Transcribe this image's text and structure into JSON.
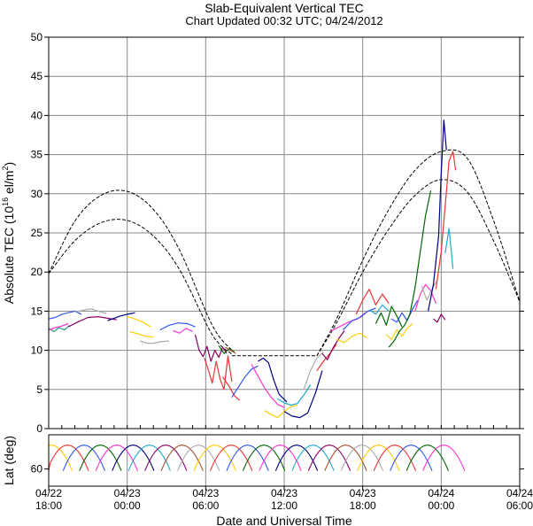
{
  "chart_data": [
    {
      "type": "line",
      "title": "Slab-Equivalent Vertical TEC",
      "subtitle": "Chart Updated 00:32 UTC; 04/24/2012",
      "xlabel": "Date and Universal Time",
      "ylabel": "Absolute TEC (10",
      "ylabel_sup": "16",
      "ylabel_mid": " el/m",
      "ylabel_sup2": "2",
      "ylabel_end": ")",
      "xlim": [
        0,
        36
      ],
      "ylim": [
        0,
        50
      ],
      "yticks": [
        0,
        5,
        10,
        15,
        20,
        25,
        30,
        35,
        40,
        45,
        50
      ],
      "xticks": [
        {
          "x": 0,
          "date": "04/22",
          "time": "18:00"
        },
        {
          "x": 6,
          "date": "04/23",
          "time": "00:00"
        },
        {
          "x": 12,
          "date": "04/23",
          "time": "06:00"
        },
        {
          "x": 18,
          "date": "04/23",
          "time": "12:00"
        },
        {
          "x": 24,
          "date": "04/23",
          "time": "18:00"
        },
        {
          "x": 30,
          "date": "04/24",
          "time": "00:00"
        },
        {
          "x": 36,
          "date": "04/24",
          "time": "06:00"
        }
      ],
      "grid": true,
      "envelope": [
        {
          "x": [
            0,
            2,
            4,
            6,
            8,
            10,
            12.5,
            14
          ],
          "y": [
            19.8,
            26.5,
            29.8,
            30.3,
            28.0,
            22.8,
            13.2,
            10.0
          ]
        },
        {
          "x": [
            0,
            2,
            4,
            6,
            8,
            10,
            12.5,
            14
          ],
          "y": [
            19.8,
            24.0,
            26.3,
            26.6,
            24.6,
            20.3,
            12.0,
            9.5
          ]
        },
        {
          "x": [
            14,
            20.5
          ],
          "y": [
            9.3,
            9.3
          ]
        },
        {
          "x": [
            20.5,
            22,
            24,
            26,
            28,
            30,
            32,
            34,
            36
          ],
          "y": [
            9.3,
            14.0,
            21.5,
            28.0,
            33.0,
            35.4,
            34.5,
            26.6,
            16.2
          ]
        },
        {
          "x": [
            20.5,
            22,
            24,
            26,
            28,
            30,
            32,
            34,
            36
          ],
          "y": [
            9.3,
            13.5,
            20.0,
            25.5,
            29.8,
            31.8,
            30.2,
            24.0,
            16.2
          ]
        }
      ],
      "series": [
        {
          "color": "#3355ee",
          "x": [
            0,
            0.5,
            1.0,
            1.5,
            2.0,
            2.5
          ],
          "y": [
            14.0,
            14.2,
            14.6,
            14.8,
            15.0,
            14.6
          ]
        },
        {
          "color": "#229988",
          "x": [
            0,
            0.4,
            0.8,
            1.2,
            1.6
          ],
          "y": [
            12.8,
            12.4,
            12.9,
            12.6,
            13.2
          ]
        },
        {
          "color": "#ff33cc",
          "x": [
            0,
            0.5,
            1.0,
            1.5
          ],
          "y": [
            12.6,
            12.9,
            13.1,
            13.4
          ]
        },
        {
          "color": "#880066",
          "x": [
            1.5,
            2.2,
            3.0,
            3.8,
            4.5,
            5.2
          ],
          "y": [
            13.0,
            13.6,
            14.2,
            14.3,
            14.1,
            13.9
          ]
        },
        {
          "color": "#aaaaaa",
          "x": [
            2.0,
            2.6,
            3.2,
            3.8,
            4.4
          ],
          "y": [
            14.9,
            15.1,
            15.3,
            15.0,
            14.7
          ]
        },
        {
          "color": "#000080",
          "x": [
            4.5,
            5.0,
            5.5,
            6.0,
            6.6
          ],
          "y": [
            13.8,
            14.1,
            14.4,
            14.6,
            14.8
          ]
        },
        {
          "color": "#ffcc00",
          "x": [
            6.0,
            6.6,
            7.2,
            7.8
          ],
          "y": [
            14.3,
            14.0,
            13.6,
            13.0
          ]
        },
        {
          "color": "#aaaaaa",
          "x": [
            7.0,
            7.5,
            8.0,
            8.6,
            9.2
          ],
          "y": [
            11.2,
            10.9,
            10.9,
            11.1,
            11.2
          ]
        },
        {
          "color": "#ffcc00",
          "x": [
            6.2,
            6.8,
            7.4,
            8.0
          ],
          "y": [
            12.4,
            12.1,
            11.8,
            11.7
          ]
        },
        {
          "color": "#3355ee",
          "x": [
            8.5,
            9.2,
            9.9,
            10.6,
            11.2
          ],
          "y": [
            12.6,
            13.2,
            13.5,
            13.4,
            13.0
          ]
        },
        {
          "color": "#ff33cc",
          "x": [
            9.5,
            10.0,
            10.5,
            11.0
          ],
          "y": [
            12.5,
            12.2,
            12.8,
            12.4
          ]
        },
        {
          "color": "#880066",
          "x": [
            11.2,
            11.5,
            11.8,
            12.1,
            12.4,
            12.7,
            13.0,
            13.3,
            13.6
          ],
          "y": [
            12.0,
            10.0,
            9.2,
            10.5,
            8.6,
            10.0,
            9.1,
            10.4,
            9.6
          ]
        },
        {
          "color": "#ee3333",
          "x": [
            11.9,
            12.2,
            12.5,
            12.8,
            13.1,
            13.4,
            13.7,
            14.0
          ],
          "y": [
            9.0,
            7.5,
            5.8,
            8.6,
            6.3,
            5.0,
            9.3,
            6.0
          ]
        },
        {
          "color": "#006600",
          "x": [
            13.0,
            13.4,
            13.8,
            14.2
          ],
          "y": [
            10.6,
            9.6,
            10.2,
            9.8
          ]
        },
        {
          "color": "#ee3333",
          "x": [
            13.3,
            13.8,
            14.2,
            14.6
          ],
          "y": [
            6.6,
            5.4,
            4.2,
            3.6
          ]
        },
        {
          "color": "#a0522d",
          "x": [
            13.5,
            13.9,
            14.3
          ],
          "y": [
            10.4,
            10.0,
            9.6
          ]
        },
        {
          "color": "#3355ee",
          "x": [
            14.0,
            14.5,
            15.0,
            15.5,
            16.0
          ],
          "y": [
            4.0,
            5.3,
            6.6,
            7.6,
            8.0
          ]
        },
        {
          "color": "#ff33cc",
          "x": [
            15.5,
            16.0,
            16.5,
            17.0,
            17.5,
            18.0
          ],
          "y": [
            8.2,
            6.7,
            5.2,
            4.0,
            3.1,
            2.7
          ]
        },
        {
          "color": "#000080",
          "x": [
            16.0,
            16.4,
            16.8,
            17.2,
            17.6,
            18.2
          ],
          "y": [
            8.6,
            9.0,
            8.4,
            6.2,
            4.4,
            3.4
          ]
        },
        {
          "color": "#ffcc00",
          "x": [
            16.5,
            17.0,
            17.5,
            18.0,
            18.5,
            19.0
          ],
          "y": [
            2.3,
            1.8,
            1.4,
            2.2,
            2.8,
            3.0
          ]
        },
        {
          "color": "#22aacc",
          "x": [
            17.5,
            18.0,
            18.5,
            19.0,
            19.5,
            20.0
          ],
          "y": [
            3.8,
            3.3,
            3.0,
            3.2,
            4.3,
            5.6
          ]
        },
        {
          "color": "#000080",
          "x": [
            18.0,
            18.6,
            19.2,
            19.8,
            20.4,
            20.9
          ],
          "y": [
            2.2,
            1.6,
            1.4,
            2.0,
            4.6,
            7.4
          ]
        },
        {
          "color": "#aaaaaa",
          "x": [
            19.5,
            20.0,
            20.5,
            21.0
          ],
          "y": [
            5.0,
            7.4,
            9.0,
            9.8
          ]
        },
        {
          "color": "#ee3333",
          "x": [
            20.5,
            21.0,
            21.5,
            22.0
          ],
          "y": [
            7.4,
            8.6,
            9.6,
            10.8
          ]
        },
        {
          "color": "#880066",
          "x": [
            20.9,
            21.3,
            21.7,
            22.2,
            22.6
          ],
          "y": [
            9.6,
            8.8,
            10.2,
            11.6,
            12.5
          ]
        },
        {
          "color": "#ffcc00",
          "x": [
            22.0,
            22.6,
            23.2,
            23.8,
            24.3
          ],
          "y": [
            11.4,
            11.0,
            11.8,
            12.2,
            11.6
          ]
        },
        {
          "color": "#ff33cc",
          "x": [
            21.5,
            22.2,
            22.9,
            23.6,
            24.2
          ],
          "y": [
            12.4,
            13.0,
            13.6,
            14.0,
            14.8
          ]
        },
        {
          "color": "#3355ee",
          "x": [
            22.5,
            23.2,
            23.8,
            24.4,
            25.0
          ],
          "y": [
            12.6,
            13.8,
            14.2,
            15.0,
            15.4
          ]
        },
        {
          "color": "#ee3333",
          "x": [
            23.5,
            24.0,
            24.5,
            25.0,
            25.5,
            26.0
          ],
          "y": [
            14.6,
            16.4,
            17.8,
            15.8,
            17.2,
            16.0
          ]
        },
        {
          "color": "#006600",
          "x": [
            25.0,
            25.4,
            25.8,
            26.2,
            26.6,
            27.0
          ],
          "y": [
            13.4,
            14.8,
            13.2,
            15.6,
            14.4,
            13.0
          ]
        },
        {
          "color": "#22aacc",
          "x": [
            24.5,
            25.0,
            25.5,
            26.0
          ],
          "y": [
            15.2,
            14.6,
            15.8,
            15.0
          ]
        },
        {
          "color": "#ffcc00",
          "x": [
            25.8,
            26.2,
            26.6,
            27.0,
            27.4,
            27.8
          ],
          "y": [
            12.0,
            11.4,
            12.6,
            11.8,
            12.8,
            13.4
          ]
        },
        {
          "color": "#3355ee",
          "x": [
            26.2,
            26.6,
            27.0,
            27.4,
            27.8,
            28.2
          ],
          "y": [
            14.0,
            13.6,
            14.8,
            13.8,
            15.2,
            16.4
          ]
        },
        {
          "color": "#006600",
          "x": [
            26.0,
            26.4,
            26.8,
            27.2,
            27.6,
            28.0,
            28.4,
            28.8,
            29.2
          ],
          "y": [
            10.4,
            11.2,
            12.4,
            13.2,
            14.6,
            18.0,
            22.6,
            27.2,
            30.4
          ]
        },
        {
          "color": "#ff33cc",
          "x": [
            28.0,
            28.4,
            28.8,
            29.2,
            29.6
          ],
          "y": [
            15.0,
            17.2,
            18.4,
            17.6,
            16.0
          ]
        },
        {
          "color": "#aaaaaa",
          "x": [
            28.5,
            28.9,
            29.3,
            29.7
          ],
          "y": [
            18.2,
            16.4,
            17.8,
            19.0
          ]
        },
        {
          "color": "#000080",
          "x": [
            29.0,
            29.4,
            29.8,
            30.0,
            30.2,
            30.4
          ],
          "y": [
            15.0,
            18.4,
            24.6,
            32.5,
            39.4,
            35.6
          ]
        },
        {
          "color": "#ee3333",
          "x": [
            29.6,
            30.0,
            30.3,
            30.6,
            30.9,
            31.1
          ],
          "y": [
            17.8,
            22.6,
            28.4,
            34.2,
            35.4,
            33.0
          ]
        },
        {
          "color": "#22aacc",
          "x": [
            30.3,
            30.6,
            30.9
          ],
          "y": [
            22.4,
            25.6,
            20.4
          ]
        },
        {
          "color": "#880066",
          "x": [
            29.4,
            29.7,
            30.0,
            30.3
          ],
          "y": [
            14.0,
            13.6,
            14.6,
            13.9
          ]
        }
      ]
    },
    {
      "type": "line",
      "ylabel": "Lat (deg)",
      "xlim": [
        0,
        36
      ],
      "ylim": [
        70,
        40
      ],
      "yticks": [
        60
      ],
      "grid": true,
      "arc_step": 1.25,
      "arc_width": 3.2,
      "arc_lat_center": 46,
      "arc_lat_edge": 61,
      "arc_colors": [
        "#ffcc00",
        "#ee3333",
        "#3355ee",
        "#006600",
        "#ff33cc",
        "#000080",
        "#22aacc",
        "#880066",
        "#a0522d",
        "#aaaaaa"
      ]
    }
  ]
}
